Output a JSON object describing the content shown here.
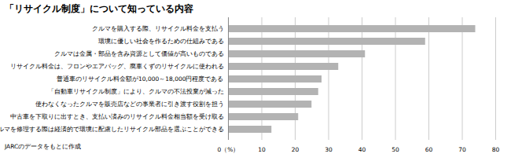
{
  "chart_data": {
    "type": "bar",
    "orientation": "horizontal",
    "title": "「リサイクル制度」について知っている内容",
    "caption": "JARCのデータをもとに作成",
    "categories": [
      "クルマを購入する際、リサイクル料金を支払う",
      "環境に優しい社会を作るための仕組みである",
      "クルマは金属・部品を含み資源として価値が高いものである",
      "リサイクル料金は、フロンやエアバッグ、廃車くずのリサイクルに使われる",
      "普通車のリサイクル料金額が10,000～18,000円程度である",
      "「自動車リサイクル制度」により、クルマの不法投棄が減った",
      "使わなくなったクルマを販売店などの事業者に引き渡す役割を担う",
      "中古車を下取りに出すとき、支払い済みのリサイクル料金相当額を受け取る",
      "クルマを修理する際は経済的で環境に配慮したリサイクル部品を選ぶことができる"
    ],
    "values": [
      74,
      59,
      41,
      33,
      28,
      27,
      25,
      21,
      13
    ],
    "color": "#b3b3b3",
    "xlim": [
      0,
      80
    ],
    "xticks": [
      {
        "value": 0,
        "label": "0（%）"
      },
      10,
      20,
      30,
      40,
      50,
      60,
      70,
      80
    ],
    "grid": true
  }
}
